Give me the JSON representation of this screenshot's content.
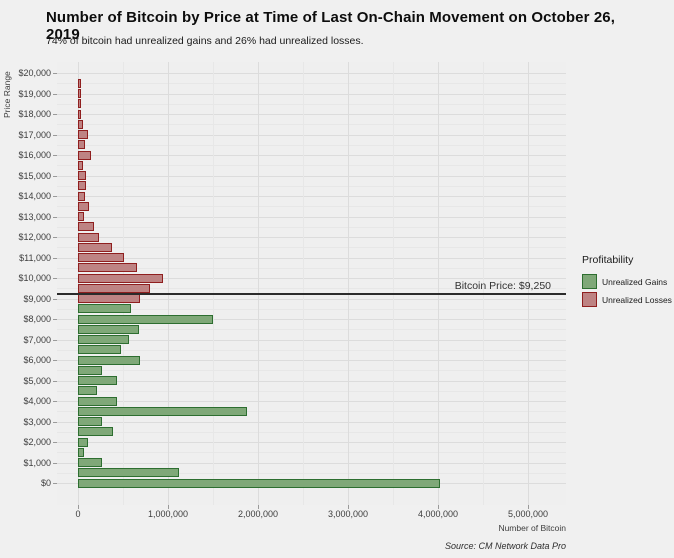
{
  "title": "Number of Bitcoin by Price at Time of Last On-Chain Movement on October 26, 2019",
  "subtitle": "74% of bitcoin had unrealized gains and 26% had unrealized losses.",
  "source": "Source: CM Network Data Pro",
  "annotation": {
    "label": "Bitcoin Price: $9,250"
  },
  "legend": {
    "title": "Profitability",
    "items": [
      {
        "label": "Unrealized Gains",
        "fill": "#7fa878",
        "stroke": "#2d6e30"
      },
      {
        "label": "Unrealized Losses",
        "fill": "#be8383",
        "stroke": "#8f1f1f"
      }
    ]
  },
  "axes": {
    "y_label": "Price Range",
    "x_label": "Number of Bitcoin",
    "y_ticks": [
      "$20,000",
      "$19,000",
      "$18,000",
      "$17,000",
      "$16,000",
      "$15,000",
      "$14,000",
      "$13,000",
      "$12,000",
      "$11,000",
      "$10,000",
      "$9,000",
      "$8,000",
      "$7,000",
      "$6,000",
      "$5,000",
      "$4,000",
      "$3,000",
      "$2,000",
      "$1,000",
      "$0"
    ],
    "x_ticks": [
      "0",
      "1,000,000",
      "2,000,000",
      "3,000,000",
      "4,000,000",
      "5,000,000"
    ]
  },
  "chart_data": {
    "type": "bar",
    "orientation": "horizontal",
    "title": "Number of Bitcoin by Price at Time of Last On-Chain Movement on October 26, 2019",
    "xlabel": "Number of Bitcoin",
    "ylabel": "Price Range",
    "xlim": [
      0,
      5300000
    ],
    "ylim": [
      0,
      20000
    ],
    "bucket_size": 500,
    "price_line_value": 9250,
    "loss_threshold_bucket": 9000,
    "grid": true,
    "legend_position": "right",
    "colors": {
      "gain": {
        "fill": "#7fa878",
        "stroke": "#2d6e30"
      },
      "loss": {
        "fill": "#be8383",
        "stroke": "#8f1f1f"
      }
    },
    "buckets": [
      {
        "price": 0,
        "btc": 4000000
      },
      {
        "price": 500,
        "btc": 1100000
      },
      {
        "price": 1000,
        "btc": 240000
      },
      {
        "price": 1500,
        "btc": 40000
      },
      {
        "price": 2000,
        "btc": 90000
      },
      {
        "price": 2500,
        "btc": 370000
      },
      {
        "price": 3000,
        "btc": 240000
      },
      {
        "price": 3500,
        "btc": 1860000
      },
      {
        "price": 4000,
        "btc": 410000
      },
      {
        "price": 4500,
        "btc": 190000
      },
      {
        "price": 5000,
        "btc": 410000
      },
      {
        "price": 5500,
        "btc": 240000
      },
      {
        "price": 6000,
        "btc": 670000
      },
      {
        "price": 6500,
        "btc": 450000
      },
      {
        "price": 7000,
        "btc": 540000
      },
      {
        "price": 7500,
        "btc": 660000
      },
      {
        "price": 8000,
        "btc": 1480000
      },
      {
        "price": 8500,
        "btc": 570000
      },
      {
        "price": 9000,
        "btc": 670000
      },
      {
        "price": 9500,
        "btc": 780000
      },
      {
        "price": 10000,
        "btc": 920000
      },
      {
        "price": 10500,
        "btc": 630000
      },
      {
        "price": 11000,
        "btc": 490000
      },
      {
        "price": 11500,
        "btc": 360000
      },
      {
        "price": 12000,
        "btc": 210000
      },
      {
        "price": 12500,
        "btc": 160000
      },
      {
        "price": 13000,
        "btc": 40000
      },
      {
        "price": 13500,
        "btc": 100000
      },
      {
        "price": 14000,
        "btc": 60000
      },
      {
        "price": 14500,
        "btc": 65000
      },
      {
        "price": 15000,
        "btc": 65000
      },
      {
        "price": 15500,
        "btc": 30000
      },
      {
        "price": 16000,
        "btc": 125000
      },
      {
        "price": 16500,
        "btc": 60000
      },
      {
        "price": 17000,
        "btc": 90000
      },
      {
        "price": 17500,
        "btc": 30000
      },
      {
        "price": 18000,
        "btc": 10000
      },
      {
        "price": 18500,
        "btc": 10000
      },
      {
        "price": 19000,
        "btc": 10000
      },
      {
        "price": 19500,
        "btc": 10000
      },
      {
        "price": 20000,
        "btc": 0
      }
    ]
  }
}
